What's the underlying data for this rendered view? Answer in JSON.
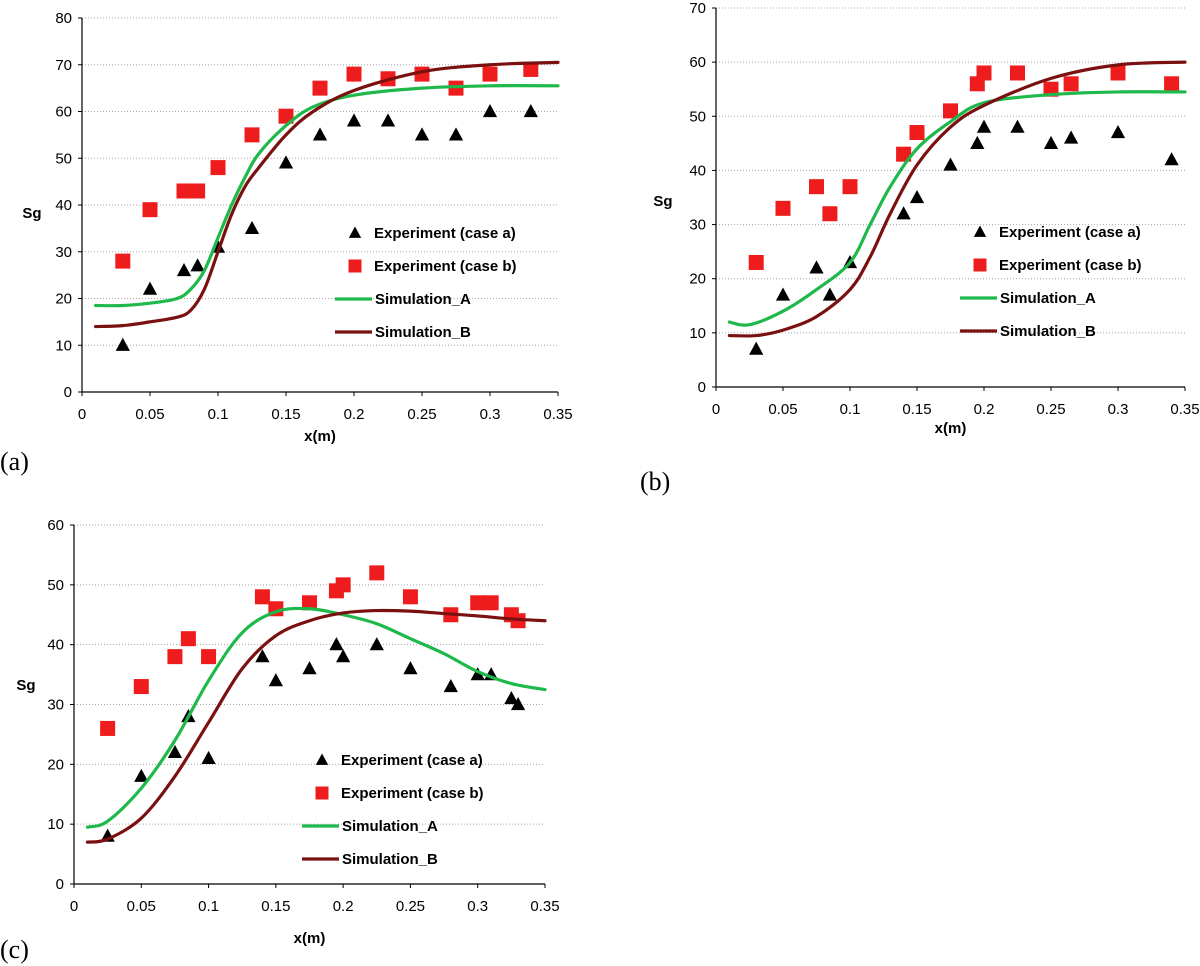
{
  "colors": {
    "case_a": "#000000",
    "case_b": "#ee1c1c",
    "sim_a": "#1fb84a",
    "sim_b": "#7b1010",
    "grid": "#a8a8a8"
  },
  "chart_data": [
    {
      "type": "scatter",
      "panel_label": "(a)",
      "xlabel": "x(m)",
      "ylabel": "Sg",
      "xlim": [
        0,
        0.35
      ],
      "ylim": [
        0,
        80
      ],
      "xticks": [
        "0",
        "0.05",
        "0.1",
        "0.15",
        "0.2",
        "0.25",
        "0.3",
        "0.35"
      ],
      "yticks": [
        "0",
        "10",
        "20",
        "30",
        "40",
        "50",
        "60",
        "70",
        "80"
      ],
      "grid": "horizontal",
      "legend_position": "bottom-right",
      "series": [
        {
          "name": "Experiment (case a)",
          "marker": "triangle",
          "color": "#000000",
          "x": [
            0.03,
            0.05,
            0.075,
            0.085,
            0.1,
            0.125,
            0.15,
            0.175,
            0.2,
            0.225,
            0.25,
            0.275,
            0.3,
            0.33
          ],
          "y": [
            10,
            22,
            26,
            27,
            31,
            35,
            49,
            55,
            58,
            58,
            55,
            55,
            60,
            60
          ]
        },
        {
          "name": "Experiment (case b)",
          "marker": "square",
          "color": "#ee1c1c",
          "x": [
            0.03,
            0.05,
            0.075,
            0.085,
            0.1,
            0.125,
            0.15,
            0.175,
            0.2,
            0.225,
            0.25,
            0.275,
            0.3,
            0.33
          ],
          "y": [
            28,
            39,
            43,
            43,
            48,
            55,
            59,
            65,
            68,
            67,
            68,
            65,
            68,
            69
          ]
        },
        {
          "name": "Simulation_A",
          "marker": "line",
          "color": "#1fb84a",
          "x": [
            0.01,
            0.03,
            0.05,
            0.07,
            0.08,
            0.09,
            0.1,
            0.11,
            0.12,
            0.13,
            0.15,
            0.17,
            0.2,
            0.25,
            0.3,
            0.35
          ],
          "y": [
            18.5,
            18.5,
            19,
            20,
            22,
            26,
            33,
            40,
            46,
            51,
            57,
            61,
            63.5,
            65,
            65.5,
            65.5
          ]
        },
        {
          "name": "Simulation_B",
          "marker": "line",
          "color": "#7b1010",
          "x": [
            0.01,
            0.03,
            0.05,
            0.07,
            0.08,
            0.09,
            0.1,
            0.11,
            0.12,
            0.13,
            0.15,
            0.17,
            0.2,
            0.25,
            0.3,
            0.35
          ],
          "y": [
            14,
            14.2,
            15,
            16,
            17.5,
            22,
            30,
            38,
            44,
            48,
            55,
            60,
            64.5,
            68.5,
            70,
            70.5
          ]
        }
      ]
    },
    {
      "type": "scatter",
      "panel_label": "(b)",
      "xlabel": "x(m)",
      "ylabel": "Sg",
      "xlim": [
        0,
        0.35
      ],
      "ylim": [
        0,
        70
      ],
      "xticks": [
        "0",
        "0.05",
        "0.1",
        "0.15",
        "0.2",
        "0.25",
        "0.3",
        "0.35"
      ],
      "yticks": [
        "0",
        "10",
        "20",
        "30",
        "40",
        "50",
        "60",
        "70"
      ],
      "grid": "horizontal",
      "legend_position": "bottom-right",
      "series": [
        {
          "name": "Experiment (case a)",
          "marker": "triangle",
          "color": "#000000",
          "x": [
            0.03,
            0.05,
            0.075,
            0.085,
            0.1,
            0.14,
            0.15,
            0.175,
            0.195,
            0.2,
            0.225,
            0.25,
            0.265,
            0.3,
            0.34
          ],
          "y": [
            7,
            17,
            22,
            17,
            23,
            32,
            35,
            41,
            45,
            48,
            48,
            45,
            46,
            47,
            42
          ]
        },
        {
          "name": "Experiment (case b)",
          "marker": "square",
          "color": "#ee1c1c",
          "x": [
            0.03,
            0.05,
            0.075,
            0.085,
            0.1,
            0.14,
            0.15,
            0.175,
            0.195,
            0.2,
            0.225,
            0.25,
            0.265,
            0.3,
            0.34
          ],
          "y": [
            23,
            33,
            37,
            32,
            37,
            43,
            47,
            51,
            56,
            58,
            58,
            55,
            56,
            58,
            56
          ]
        },
        {
          "name": "Simulation_A",
          "marker": "line",
          "color": "#1fb84a",
          "x": [
            0.01,
            0.025,
            0.05,
            0.075,
            0.1,
            0.115,
            0.13,
            0.15,
            0.175,
            0.2,
            0.25,
            0.3,
            0.35
          ],
          "y": [
            12,
            11.5,
            14,
            18,
            23,
            30,
            37,
            44,
            49,
            52.5,
            54,
            54.5,
            54.5
          ]
        },
        {
          "name": "Simulation_B",
          "marker": "line",
          "color": "#7b1010",
          "x": [
            0.01,
            0.03,
            0.05,
            0.075,
            0.1,
            0.115,
            0.13,
            0.15,
            0.175,
            0.2,
            0.25,
            0.3,
            0.35
          ],
          "y": [
            9.5,
            9.5,
            10.5,
            13,
            18,
            24,
            32,
            41,
            48,
            52,
            57,
            59.5,
            60
          ]
        }
      ]
    },
    {
      "type": "scatter",
      "panel_label": "(c)",
      "xlabel": "x(m)",
      "ylabel": "Sg",
      "xlim": [
        0,
        0.35
      ],
      "ylim": [
        0,
        60
      ],
      "xticks": [
        "0",
        "0.05",
        "0.1",
        "0.15",
        "0.2",
        "0.25",
        "0.3",
        "0.35"
      ],
      "yticks": [
        "0",
        "10",
        "20",
        "30",
        "40",
        "50",
        "60"
      ],
      "grid": "horizontal",
      "legend_position": "bottom-right",
      "series": [
        {
          "name": "Experiment (case a)",
          "marker": "triangle",
          "color": "#000000",
          "x": [
            0.025,
            0.05,
            0.075,
            0.085,
            0.1,
            0.14,
            0.15,
            0.175,
            0.195,
            0.2,
            0.225,
            0.25,
            0.28,
            0.3,
            0.31,
            0.325,
            0.33
          ],
          "y": [
            8,
            18,
            22,
            28,
            21,
            38,
            34,
            36,
            40,
            38,
            40,
            36,
            33,
            35,
            35,
            31,
            30
          ]
        },
        {
          "name": "Experiment (case b)",
          "marker": "square",
          "color": "#ee1c1c",
          "x": [
            0.025,
            0.05,
            0.075,
            0.085,
            0.1,
            0.14,
            0.15,
            0.175,
            0.195,
            0.2,
            0.225,
            0.25,
            0.28,
            0.3,
            0.31,
            0.325,
            0.33
          ],
          "y": [
            26,
            33,
            38,
            41,
            38,
            48,
            46,
            47,
            49,
            50,
            52,
            48,
            45,
            47,
            47,
            45,
            44
          ]
        },
        {
          "name": "Simulation_A",
          "marker": "line",
          "color": "#1fb84a",
          "x": [
            0.01,
            0.025,
            0.05,
            0.075,
            0.1,
            0.125,
            0.15,
            0.175,
            0.2,
            0.225,
            0.25,
            0.275,
            0.3,
            0.325,
            0.35
          ],
          "y": [
            9.5,
            10.5,
            16,
            24,
            34,
            42,
            45.5,
            46,
            45,
            43.5,
            41,
            38.5,
            35.5,
            33.5,
            32.5
          ]
        },
        {
          "name": "Simulation_B",
          "marker": "line",
          "color": "#7b1010",
          "x": [
            0.01,
            0.025,
            0.05,
            0.075,
            0.1,
            0.125,
            0.15,
            0.175,
            0.2,
            0.225,
            0.25,
            0.275,
            0.3,
            0.325,
            0.35
          ],
          "y": [
            7,
            7.5,
            11,
            18,
            27,
            36,
            41.5,
            44,
            45.3,
            45.7,
            45.6,
            45.2,
            44.8,
            44.3,
            44
          ]
        }
      ]
    }
  ]
}
